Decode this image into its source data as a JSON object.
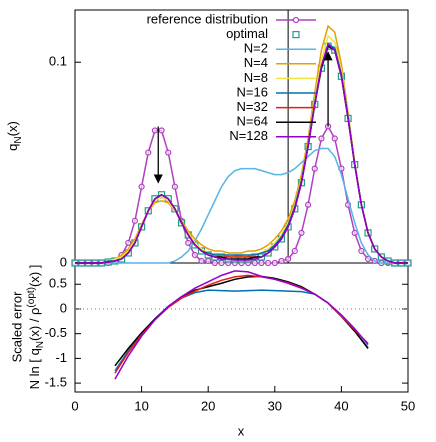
{
  "chart_data": [
    {
      "type": "line",
      "legend": "upper right",
      "ylabel": [
        "q",
        "N",
        "(x)"
      ],
      "xlim": [
        0,
        50
      ],
      "ylim": [
        0,
        0.126
      ],
      "yticks": [
        0,
        0.1
      ],
      "vlines": [
        32
      ],
      "arrows": [
        {
          "x": 12.5,
          "from": 0.068,
          "to": 0.04
        },
        {
          "x": 38,
          "from": 0.068,
          "to": 0.105
        }
      ],
      "x": [
        0,
        1,
        2,
        3,
        4,
        5,
        6,
        7,
        8,
        9,
        10,
        11,
        12,
        13,
        14,
        15,
        16,
        17,
        18,
        19,
        20,
        21,
        22,
        23,
        24,
        25,
        26,
        27,
        28,
        29,
        30,
        31,
        32,
        33,
        34,
        35,
        36,
        37,
        38,
        39,
        40,
        41,
        42,
        43,
        44,
        45,
        46,
        47,
        48,
        49,
        50
      ],
      "series": [
        {
          "name": "reference distribution",
          "color": "#b040c0",
          "marker": "circle",
          "line": true,
          "values": [
            0,
            0,
            0,
            0,
            0,
            0,
            0.001,
            0.004,
            0.01,
            0.021,
            0.038,
            0.055,
            0.066,
            0.066,
            0.055,
            0.038,
            0.021,
            0.01,
            0.004,
            0.001,
            0.001,
            0,
            0,
            0,
            0,
            0,
            0,
            0,
            0,
            0,
            0,
            0.001,
            0.002,
            0.006,
            0.015,
            0.029,
            0.047,
            0.062,
            0.068,
            0.062,
            0.047,
            0.029,
            0.015,
            0.006,
            0.002,
            0.001,
            0,
            0,
            0,
            0,
            0
          ]
        },
        {
          "name": "optimal",
          "color": "#1f9e8a",
          "marker": "square",
          "line": false,
          "values": [
            0,
            0,
            0,
            0,
            0,
            0.0005,
            0.001,
            0.002,
            0.005,
            0.01,
            0.018,
            0.026,
            0.032,
            0.034,
            0.032,
            0.027,
            0.02,
            0.014,
            0.009,
            0.006,
            0.004,
            0.003,
            0.003,
            0.002,
            0.002,
            0.002,
            0.002,
            0.003,
            0.003,
            0.005,
            0.008,
            0.012,
            0.018,
            0.027,
            0.04,
            0.058,
            0.079,
            0.097,
            0.108,
            0.106,
            0.093,
            0.072,
            0.049,
            0.029,
            0.015,
            0.007,
            0.003,
            0.001,
            0,
            0,
            0
          ]
        },
        {
          "name": "N=2",
          "color": "#56b4e9",
          "line": true,
          "values": [
            0,
            0,
            0,
            0,
            0,
            0,
            0,
            0,
            0,
            0,
            0,
            0,
            0,
            0,
            0,
            0.001,
            0.003,
            0.006,
            0.011,
            0.017,
            0.024,
            0.031,
            0.038,
            0.043,
            0.046,
            0.047,
            0.047,
            0.047,
            0.046,
            0.045,
            0.044,
            0.044,
            0.045,
            0.047,
            0.05,
            0.053,
            0.056,
            0.057,
            0.057,
            0.053,
            0.044,
            0.032,
            0.02,
            0.01,
            0.004,
            0.001,
            0,
            0,
            0,
            0,
            0
          ]
        },
        {
          "name": "N=4",
          "color": "#e69f00",
          "line": true,
          "values": [
            0,
            0,
            0,
            0,
            0,
            0.001,
            0.002,
            0.004,
            0.007,
            0.012,
            0.019,
            0.026,
            0.03,
            0.031,
            0.03,
            0.026,
            0.021,
            0.016,
            0.012,
            0.009,
            0.007,
            0.006,
            0.006,
            0.005,
            0.005,
            0.005,
            0.006,
            0.006,
            0.007,
            0.009,
            0.012,
            0.016,
            0.022,
            0.031,
            0.044,
            0.062,
            0.085,
            0.106,
            0.118,
            0.115,
            0.099,
            0.075,
            0.05,
            0.029,
            0.015,
            0.007,
            0.003,
            0.001,
            0,
            0,
            0
          ]
        },
        {
          "name": "N=8",
          "color": "#f0e442",
          "line": true,
          "values": [
            0,
            0,
            0,
            0,
            0,
            0.001,
            0.002,
            0.003,
            0.006,
            0.011,
            0.018,
            0.026,
            0.031,
            0.033,
            0.031,
            0.026,
            0.02,
            0.015,
            0.01,
            0.007,
            0.005,
            0.004,
            0.004,
            0.004,
            0.003,
            0.003,
            0.004,
            0.004,
            0.005,
            0.007,
            0.01,
            0.014,
            0.02,
            0.029,
            0.042,
            0.06,
            0.082,
            0.101,
            0.113,
            0.11,
            0.096,
            0.074,
            0.05,
            0.029,
            0.015,
            0.007,
            0.003,
            0.001,
            0,
            0,
            0
          ]
        },
        {
          "name": "N=16",
          "color": "#0072b2",
          "line": true,
          "values": [
            0,
            0,
            0,
            0,
            0,
            0.001,
            0.001,
            0.002,
            0.005,
            0.01,
            0.018,
            0.026,
            0.032,
            0.034,
            0.032,
            0.027,
            0.02,
            0.014,
            0.009,
            0.006,
            0.005,
            0.004,
            0.004,
            0.004,
            0.004,
            0.004,
            0.004,
            0.004,
            0.005,
            0.006,
            0.009,
            0.013,
            0.019,
            0.028,
            0.041,
            0.059,
            0.08,
            0.098,
            0.109,
            0.107,
            0.094,
            0.073,
            0.049,
            0.029,
            0.015,
            0.007,
            0.003,
            0.001,
            0,
            0,
            0
          ]
        },
        {
          "name": "N=32",
          "color": "#e51e10",
          "line": true,
          "values": [
            0,
            0,
            0,
            0,
            0,
            0.0005,
            0.001,
            0.002,
            0.005,
            0.01,
            0.018,
            0.026,
            0.032,
            0.034,
            0.032,
            0.027,
            0.02,
            0.014,
            0.009,
            0.006,
            0.004,
            0.003,
            0.003,
            0.003,
            0.003,
            0.003,
            0.003,
            0.003,
            0.003,
            0.005,
            0.008,
            0.012,
            0.018,
            0.027,
            0.04,
            0.058,
            0.079,
            0.097,
            0.108,
            0.106,
            0.093,
            0.072,
            0.049,
            0.029,
            0.015,
            0.007,
            0.003,
            0.001,
            0,
            0,
            0
          ]
        },
        {
          "name": "N=64",
          "color": "#000000",
          "line": true,
          "values": [
            0,
            0,
            0,
            0,
            0,
            0.0005,
            0.001,
            0.002,
            0.005,
            0.01,
            0.018,
            0.026,
            0.032,
            0.034,
            0.032,
            0.027,
            0.02,
            0.014,
            0.009,
            0.006,
            0.004,
            0.003,
            0.003,
            0.002,
            0.002,
            0.002,
            0.002,
            0.003,
            0.003,
            0.005,
            0.008,
            0.012,
            0.018,
            0.027,
            0.04,
            0.058,
            0.079,
            0.097,
            0.108,
            0.106,
            0.093,
            0.072,
            0.049,
            0.029,
            0.015,
            0.007,
            0.003,
            0.001,
            0,
            0,
            0
          ]
        },
        {
          "name": "N=128",
          "color": "#9400d3",
          "line": true,
          "values": [
            0,
            0,
            0,
            0,
            0,
            0.0005,
            0.001,
            0.002,
            0.005,
            0.01,
            0.018,
            0.026,
            0.032,
            0.034,
            0.032,
            0.027,
            0.02,
            0.014,
            0.009,
            0.006,
            0.004,
            0.003,
            0.002,
            0.002,
            0.0015,
            0.0015,
            0.0015,
            0.002,
            0.003,
            0.005,
            0.008,
            0.012,
            0.018,
            0.027,
            0.04,
            0.058,
            0.079,
            0.098,
            0.109,
            0.106,
            0.093,
            0.072,
            0.049,
            0.029,
            0.015,
            0.007,
            0.003,
            0.001,
            0,
            0,
            0
          ]
        }
      ]
    },
    {
      "type": "line",
      "ylabel": [
        "Scaled error",
        [
          "N ln [ q",
          "N",
          "(x) / ρ",
          "(opt)",
          "(x) ]"
        ]
      ],
      "xlabel": "x",
      "xlim": [
        0,
        50
      ],
      "xticks": [
        0,
        10,
        20,
        30,
        40,
        50
      ],
      "ylim": [
        -1.68,
        0.93
      ],
      "yticks": [
        0.5,
        0,
        -0.5,
        -1,
        -1.5
      ],
      "hlines": [
        0
      ],
      "x": [
        6,
        8,
        10,
        12,
        14,
        16,
        18,
        20,
        22,
        24,
        26,
        28,
        30,
        32,
        34,
        36,
        38,
        40,
        42,
        44
      ],
      "series": [
        {
          "color": "#0072b2",
          "line": true,
          "values": [
            -1.25,
            -0.85,
            -0.5,
            -0.2,
            0.05,
            0.22,
            0.33,
            0.38,
            0.37,
            0.36,
            0.37,
            0.38,
            0.37,
            0.36,
            0.35,
            0.3,
            0.12,
            -0.15,
            -0.45,
            -0.78
          ]
        },
        {
          "color": "#000000",
          "line": true,
          "values": [
            -1.15,
            -0.8,
            -0.48,
            -0.2,
            0.05,
            0.25,
            0.38,
            0.45,
            0.52,
            0.6,
            0.65,
            0.66,
            0.62,
            0.55,
            0.45,
            0.3,
            0.12,
            -0.15,
            -0.45,
            -0.8
          ]
        },
        {
          "color": "#e51e10",
          "line": true,
          "values": [
            -1.3,
            -0.88,
            -0.52,
            -0.22,
            0.03,
            0.22,
            0.36,
            0.48,
            0.58,
            0.65,
            0.68,
            0.65,
            0.6,
            0.53,
            0.43,
            0.3,
            0.12,
            -0.15,
            -0.42,
            -0.7
          ]
        },
        {
          "color": "#9400d3",
          "line": true,
          "values": [
            -1.42,
            -0.95,
            -0.55,
            -0.22,
            0.05,
            0.25,
            0.42,
            0.55,
            0.68,
            0.77,
            0.75,
            0.66,
            0.6,
            0.52,
            0.42,
            0.3,
            0.12,
            -0.12,
            -0.4,
            -0.72
          ]
        }
      ]
    }
  ]
}
